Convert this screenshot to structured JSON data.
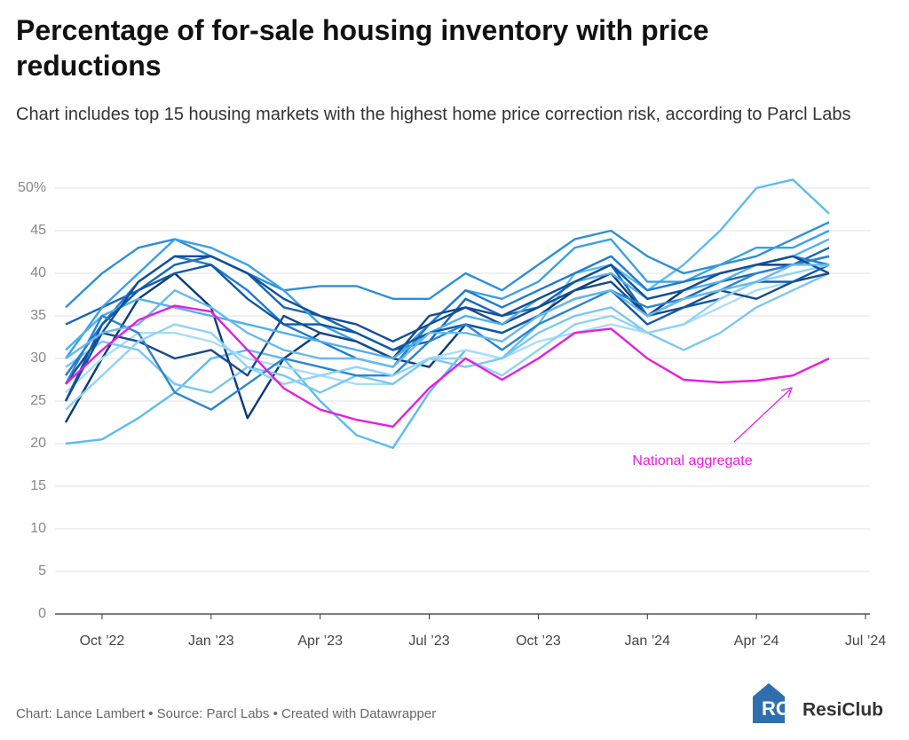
{
  "chart_data": {
    "type": "line",
    "title": "Percentage of for-sale housing inventory with price reductions",
    "subtitle": "Chart includes top 15 housing markets with the highest home price correction risk, according to Parcl Labs",
    "source": "Chart: Lance Lambert • Source: Parcl Labs • Created with Datawrapper",
    "logo": "ResiClub",
    "x": [
      "2022-09",
      "2022-10",
      "2022-11",
      "2022-12",
      "2023-01",
      "2023-02",
      "2023-03",
      "2023-04",
      "2023-05",
      "2023-06",
      "2023-07",
      "2023-08",
      "2023-09",
      "2023-10",
      "2023-11",
      "2023-12",
      "2024-01",
      "2024-02",
      "2024-03",
      "2024-04",
      "2024-05",
      "2024-06"
    ],
    "xlim": [
      "2022-09",
      "2024-07"
    ],
    "xticks": [
      {
        "value": "2022-10",
        "label": "Oct ’22"
      },
      {
        "value": "2023-01",
        "label": "Jan ’23"
      },
      {
        "value": "2023-04",
        "label": "Apr ’23"
      },
      {
        "value": "2023-07",
        "label": "Jul ’23"
      },
      {
        "value": "2023-10",
        "label": "Oct ’23"
      },
      {
        "value": "2024-01",
        "label": "Jan ’24"
      },
      {
        "value": "2024-04",
        "label": "Apr ’24"
      },
      {
        "value": "2024-07",
        "label": "Jul ’24"
      }
    ],
    "ylim": [
      0,
      50
    ],
    "yticks": [
      0,
      5,
      10,
      15,
      20,
      25,
      30,
      35,
      40,
      45,
      {
        "value": 50,
        "label": "50%"
      }
    ],
    "grid": true,
    "series": [
      {
        "color": "#5bbcf0",
        "values": [
          20,
          20.5,
          23,
          26,
          30,
          31,
          30,
          25,
          21,
          19.5,
          26,
          31,
          30,
          34,
          40,
          41,
          38,
          41,
          45,
          50,
          51,
          47
        ]
      },
      {
        "color": "#2d8fd8",
        "values": [
          36,
          40,
          43,
          44,
          42,
          40,
          38,
          38.5,
          38.5,
          37,
          37,
          40,
          38,
          41,
          44,
          45,
          42,
          40,
          41,
          42,
          44,
          46
        ]
      },
      {
        "color": "#0b3a75",
        "values": [
          22.5,
          30,
          37,
          40,
          36,
          23,
          30,
          33,
          32,
          30,
          29,
          34,
          33,
          35,
          38,
          40,
          35,
          38,
          40,
          41,
          41,
          42
        ]
      },
      {
        "color": "#1565b5",
        "values": [
          34,
          36,
          38,
          41,
          42,
          40,
          36,
          35,
          33,
          31,
          32,
          37,
          35,
          36,
          39,
          41,
          35,
          37,
          39,
          40,
          41,
          43
        ]
      },
      {
        "color": "#3aa0e8",
        "values": [
          30,
          36,
          40,
          44,
          43,
          41,
          38,
          34,
          32,
          30,
          34,
          38,
          37,
          39,
          43,
          44,
          39,
          39,
          41,
          43,
          43,
          45
        ]
      },
      {
        "color": "#a9ddf7",
        "values": [
          26,
          30,
          33,
          33,
          32,
          30,
          29,
          28,
          27,
          27,
          30,
          31,
          30,
          32,
          33,
          34,
          33,
          34,
          36,
          38,
          39,
          40
        ]
      },
      {
        "color": "#7cc6f2",
        "values": [
          29,
          32,
          31,
          27,
          26,
          29,
          28,
          26,
          28,
          27,
          30,
          29,
          30,
          33,
          35,
          36,
          33,
          31,
          33,
          36,
          38,
          40
        ]
      },
      {
        "color": "#1f7ad0",
        "values": [
          28,
          34,
          39,
          42,
          41,
          38,
          34,
          32,
          30,
          29,
          34,
          38,
          36,
          38,
          40,
          42,
          38,
          39,
          40,
          41,
          42,
          41
        ]
      },
      {
        "color": "#174a8c",
        "values": [
          27,
          33,
          32,
          30,
          31,
          28,
          35,
          33,
          32,
          30,
          35,
          36,
          34,
          36,
          38,
          39,
          35,
          36,
          38,
          37,
          39,
          40
        ]
      },
      {
        "color": "#4fb0ec",
        "values": [
          31,
          35,
          37,
          36,
          35,
          34,
          33,
          32,
          31,
          30,
          33,
          35,
          34,
          37,
          39,
          40,
          37,
          38,
          39,
          41,
          42,
          44
        ]
      },
      {
        "color": "#0e58a6",
        "values": [
          25,
          34,
          38,
          40,
          41,
          37,
          34,
          34,
          33,
          31,
          33,
          34,
          33,
          35,
          37,
          38,
          34,
          36,
          37,
          39,
          39,
          41
        ]
      },
      {
        "color": "#2a84d2",
        "values": [
          27,
          35,
          33,
          26,
          24,
          27,
          30,
          29,
          28,
          28,
          32,
          34,
          31,
          34,
          36,
          38,
          36,
          37,
          38,
          40,
          41,
          42
        ]
      },
      {
        "color": "#8fd3f5",
        "values": [
          24,
          28,
          32,
          34,
          33,
          29,
          27,
          28,
          29,
          28,
          30,
          30,
          28,
          31,
          34,
          35,
          33,
          34,
          37,
          39,
          40,
          41
        ]
      },
      {
        "color": "#124e96",
        "values": [
          25,
          33,
          39,
          42,
          42,
          40,
          37,
          35,
          34,
          32,
          34,
          36,
          35,
          37,
          39,
          41,
          37,
          38,
          40,
          41,
          42,
          40
        ]
      },
      {
        "color": "#66b9ee",
        "values": [
          30,
          33,
          34,
          38,
          36,
          33,
          31,
          30,
          30,
          29,
          33,
          33,
          32,
          35,
          37,
          38,
          35,
          37,
          38,
          39,
          41,
          41
        ]
      },
      {
        "name": "National aggregate",
        "color": "#e81ce0",
        "values": [
          27,
          31,
          34.5,
          36.2,
          35.5,
          31,
          26.5,
          24,
          22.8,
          22,
          26.5,
          30,
          27.5,
          30,
          33,
          33.5,
          30,
          27.5,
          27.2,
          27.4,
          28,
          30
        ]
      }
    ]
  }
}
